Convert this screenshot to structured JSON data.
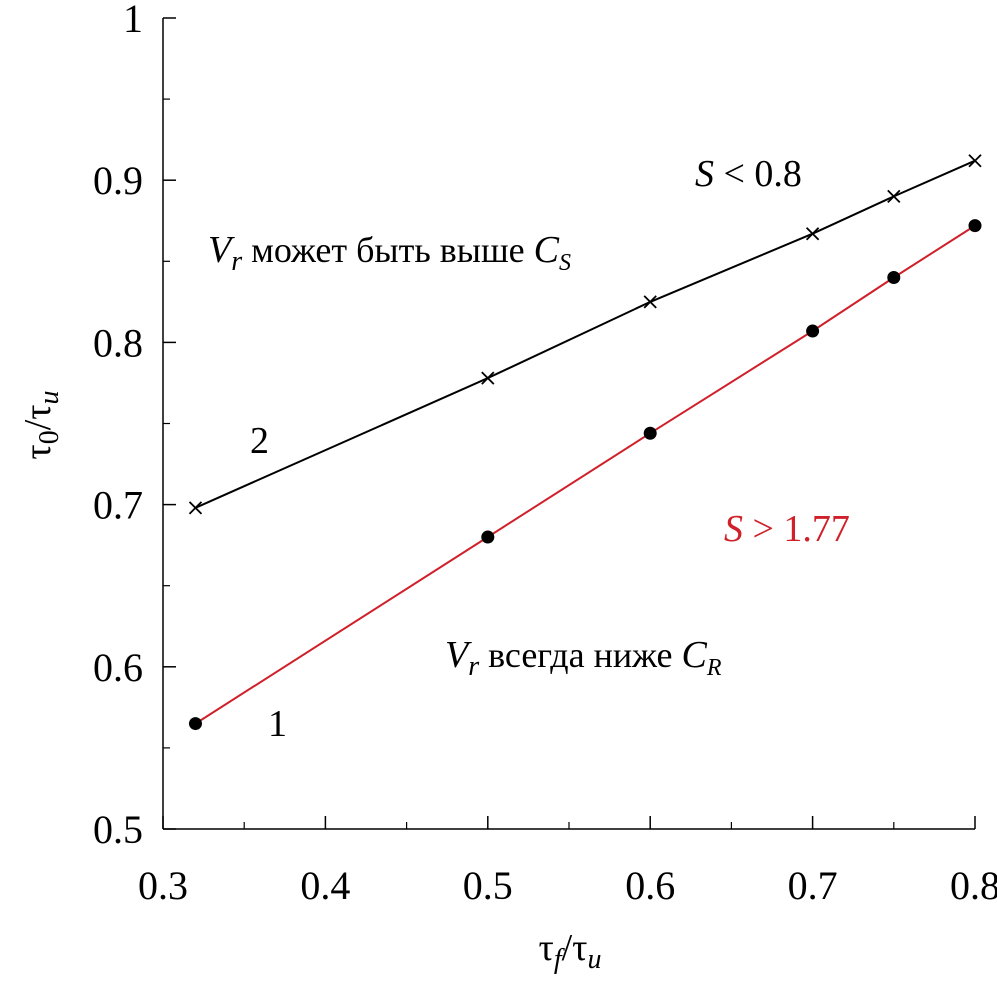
{
  "chart_data": {
    "type": "line",
    "xlabel": {
      "base": "τ",
      "sub1": "f",
      "slash": "/",
      "base2": "τ",
      "sub2": "u"
    },
    "ylabel": {
      "base": "τ",
      "sub1": "0",
      "slash": "/",
      "base2": "τ",
      "sub2": "u"
    },
    "xlim": [
      0.3,
      0.8
    ],
    "ylim": [
      0.5,
      1.0
    ],
    "x_ticks": [
      "0.3",
      "0.4",
      "0.5",
      "0.6",
      "0.7",
      "0.8"
    ],
    "x_tick_values": [
      0.3,
      0.4,
      0.5,
      0.6,
      0.7,
      0.8
    ],
    "y_ticks": [
      "0.5",
      "0.6",
      "0.7",
      "0.8",
      "0.9",
      "1"
    ],
    "y_tick_values": [
      0.5,
      0.6,
      0.7,
      0.8,
      0.9,
      1.0
    ],
    "grid": false,
    "series": [
      {
        "name": "1",
        "color": "#d0202a",
        "marker": "circle",
        "x": [
          0.32,
          0.5,
          0.6,
          0.7,
          0.75,
          0.8
        ],
        "y": [
          0.565,
          0.68,
          0.744,
          0.807,
          0.84,
          0.872
        ]
      },
      {
        "name": "2",
        "color": "#000000",
        "marker": "x",
        "x": [
          0.32,
          0.5,
          0.6,
          0.7,
          0.75,
          0.8
        ],
        "y": [
          0.698,
          0.778,
          0.825,
          0.867,
          0.89,
          0.912
        ]
      }
    ],
    "annotations": {
      "upper_condition": {
        "var": "S",
        "text": " < 0.8",
        "color": "#000000"
      },
      "lower_condition": {
        "var": "S",
        "text": " > 1.77",
        "color": "#d0202a"
      },
      "upper_region": {
        "var": "V",
        "var_sub": "r",
        "text": " может быть выше ",
        "var2": "C",
        "var2_sub": "S"
      },
      "lower_region": {
        "var": "V",
        "var_sub": "r",
        "text": " всегда ниже ",
        "var2": "C",
        "var2_sub": "R"
      }
    }
  }
}
